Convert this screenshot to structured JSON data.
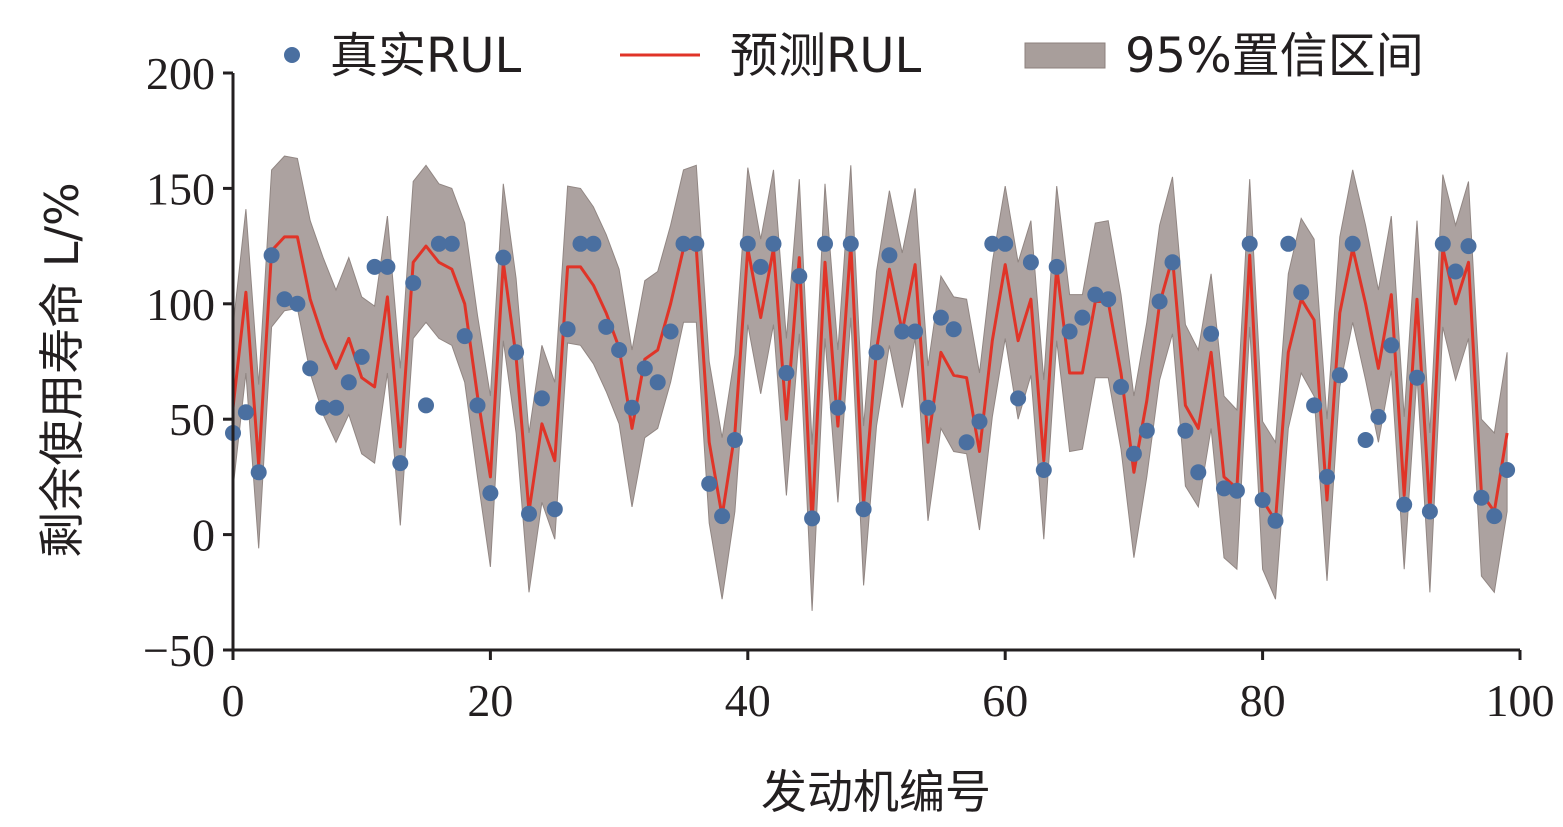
{
  "chart_data": {
    "type": "line",
    "xlabel": "发动机编号",
    "ylabel": "剩余使用寿命 L/%",
    "xlim": [
      0,
      100
    ],
    "ylim": [
      -50,
      200
    ],
    "x_ticks": [
      "0",
      "20",
      "40",
      "60",
      "80",
      "100"
    ],
    "y_ticks": [
      "−50",
      "0",
      "50",
      "100",
      "150",
      "200"
    ],
    "grid": false,
    "legend_placement": "top",
    "legend": {
      "true_label": "真实RUL",
      "pred_label": "预测RUL",
      "ci_label": "95%置信区间"
    },
    "colors": {
      "true_points": "#4a6fa0",
      "pred_line": "#e03428",
      "ci_band": "#a89e9b",
      "ci_edge": "#8c807d",
      "axis": "#231f20"
    },
    "series": [
      {
        "name": "真实RUL",
        "kind": "scatter",
        "x": [
          0,
          1,
          2,
          3,
          4,
          5,
          6,
          7,
          8,
          9,
          10,
          11,
          12,
          13,
          14,
          15,
          16,
          17,
          18,
          19,
          20,
          21,
          22,
          23,
          24,
          25,
          26,
          27,
          28,
          29,
          30,
          31,
          32,
          33,
          34,
          35,
          36,
          37,
          38,
          39,
          40,
          41,
          42,
          43,
          44,
          45,
          46,
          47,
          48,
          49,
          50,
          51,
          52,
          53,
          54,
          55,
          56,
          57,
          58,
          59,
          60,
          61,
          62,
          63,
          64,
          65,
          66,
          67,
          68,
          69,
          70,
          71,
          72,
          73,
          74,
          75,
          76,
          77,
          78,
          79,
          80,
          81,
          82,
          83,
          84,
          85,
          86,
          87,
          88,
          89,
          90,
          91,
          92,
          93,
          94,
          95,
          96,
          97,
          98,
          99
        ],
        "y": [
          44,
          53,
          27,
          121,
          102,
          100,
          72,
          55,
          55,
          66,
          77,
          116,
          116,
          31,
          109,
          56,
          126,
          126,
          86,
          56,
          18,
          120,
          79,
          9,
          59,
          11,
          89,
          126,
          126,
          90,
          80,
          55,
          72,
          66,
          88,
          126,
          126,
          22,
          8,
          41,
          126,
          116,
          126,
          70,
          112,
          7,
          126,
          55,
          126,
          11,
          79,
          121,
          88,
          88,
          55,
          94,
          89,
          40,
          49,
          126,
          126,
          59,
          118,
          28,
          116,
          88,
          94,
          104,
          102,
          64,
          35,
          45,
          101,
          118,
          45,
          27,
          87,
          20,
          19,
          126,
          15,
          6,
          126,
          105,
          56,
          25,
          69,
          126,
          41,
          51,
          82,
          13,
          68,
          10,
          126,
          114,
          125,
          16,
          8,
          28
        ]
      },
      {
        "name": "预测RUL",
        "kind": "line",
        "x": [
          0,
          1,
          2,
          3,
          4,
          5,
          6,
          7,
          8,
          9,
          10,
          11,
          12,
          13,
          14,
          15,
          16,
          17,
          18,
          19,
          20,
          21,
          22,
          23,
          24,
          25,
          26,
          27,
          28,
          29,
          30,
          31,
          32,
          33,
          34,
          35,
          36,
          37,
          38,
          39,
          40,
          41,
          42,
          43,
          44,
          45,
          46,
          47,
          48,
          49,
          50,
          51,
          52,
          53,
          54,
          55,
          56,
          57,
          58,
          59,
          60,
          61,
          62,
          63,
          64,
          65,
          66,
          67,
          68,
          69,
          70,
          71,
          72,
          73,
          74,
          75,
          76,
          77,
          78,
          79,
          80,
          81,
          82,
          83,
          84,
          85,
          86,
          87,
          88,
          89,
          90,
          91,
          92,
          93,
          94,
          95,
          96,
          97,
          98,
          99
        ],
        "y": [
          55,
          105,
          30,
          123,
          129,
          129,
          102,
          85,
          72,
          85,
          68,
          64,
          103,
          38,
          118,
          125,
          118,
          115,
          100,
          60,
          25,
          118,
          77,
          10,
          48,
          32,
          116,
          116,
          108,
          96,
          81,
          46,
          76,
          80,
          100,
          124,
          124,
          40,
          8,
          44,
          124,
          94,
          124,
          50,
          120,
          5,
          118,
          47,
          126,
          13,
          80,
          115,
          88,
          117,
          40,
          79,
          69,
          68,
          36,
          84,
          117,
          84,
          102,
          32,
          116,
          70,
          70,
          101,
          101,
          70,
          27,
          58,
          100,
          120,
          56,
          46,
          79,
          25,
          20,
          121,
          15,
          6,
          79,
          102,
          93,
          15,
          96,
          124,
          100,
          72,
          104,
          17,
          102,
          10,
          124,
          100,
          118,
          18,
          10,
          44
        ]
      },
      {
        "name": "95%置信区间",
        "kind": "area",
        "x": [
          0,
          1,
          2,
          3,
          4,
          5,
          6,
          7,
          8,
          9,
          10,
          11,
          12,
          13,
          14,
          15,
          16,
          17,
          18,
          19,
          20,
          21,
          22,
          23,
          24,
          25,
          26,
          27,
          28,
          29,
          30,
          31,
          32,
          33,
          34,
          35,
          36,
          37,
          38,
          39,
          40,
          41,
          42,
          43,
          44,
          45,
          46,
          47,
          48,
          49,
          50,
          51,
          52,
          53,
          54,
          55,
          56,
          57,
          58,
          59,
          60,
          61,
          62,
          63,
          64,
          65,
          66,
          67,
          68,
          69,
          70,
          71,
          72,
          73,
          74,
          75,
          76,
          77,
          78,
          79,
          80,
          81,
          82,
          83,
          84,
          85,
          86,
          87,
          88,
          89,
          90,
          91,
          92,
          93,
          94,
          95,
          96,
          97,
          98,
          99
        ],
        "lower": [
          20,
          70,
          -6,
          90,
          97,
          98,
          70,
          52,
          40,
          52,
          35,
          31,
          70,
          4,
          85,
          92,
          85,
          82,
          66,
          25,
          -14,
          84,
          44,
          -25,
          14,
          -2,
          83,
          82,
          74,
          62,
          48,
          12,
          42,
          46,
          66,
          92,
          92,
          5,
          -28,
          10,
          91,
          61,
          91,
          17,
          87,
          -33,
          85,
          14,
          94,
          -22,
          47,
          82,
          55,
          85,
          6,
          46,
          36,
          35,
          2,
          51,
          85,
          50,
          69,
          -2,
          84,
          36,
          37,
          68,
          68,
          37,
          -10,
          25,
          67,
          87,
          21,
          12,
          46,
          -10,
          -15,
          90,
          -15,
          -28,
          46,
          70,
          60,
          -20,
          64,
          92,
          67,
          40,
          71,
          -15,
          69,
          -25,
          90,
          67,
          85,
          -18,
          -25,
          10
        ],
        "upper": [
          90,
          141,
          65,
          158,
          164,
          163,
          136,
          120,
          106,
          120,
          103,
          99,
          138,
          72,
          153,
          160,
          152,
          150,
          135,
          95,
          60,
          152,
          111,
          44,
          82,
          66,
          151,
          150,
          142,
          130,
          115,
          80,
          110,
          114,
          134,
          158,
          160,
          75,
          42,
          78,
          159,
          128,
          158,
          85,
          154,
          39,
          152,
          80,
          160,
          47,
          114,
          149,
          122,
          150,
          73,
          112,
          103,
          102,
          70,
          118,
          151,
          118,
          136,
          67,
          151,
          104,
          104,
          135,
          136,
          104,
          60,
          92,
          134,
          155,
          91,
          80,
          113,
          60,
          54,
          154,
          49,
          40,
          113,
          137,
          128,
          50,
          129,
          158,
          134,
          106,
          138,
          51,
          136,
          44,
          156,
          134,
          153,
          50,
          44,
          79
        ]
      }
    ]
  }
}
